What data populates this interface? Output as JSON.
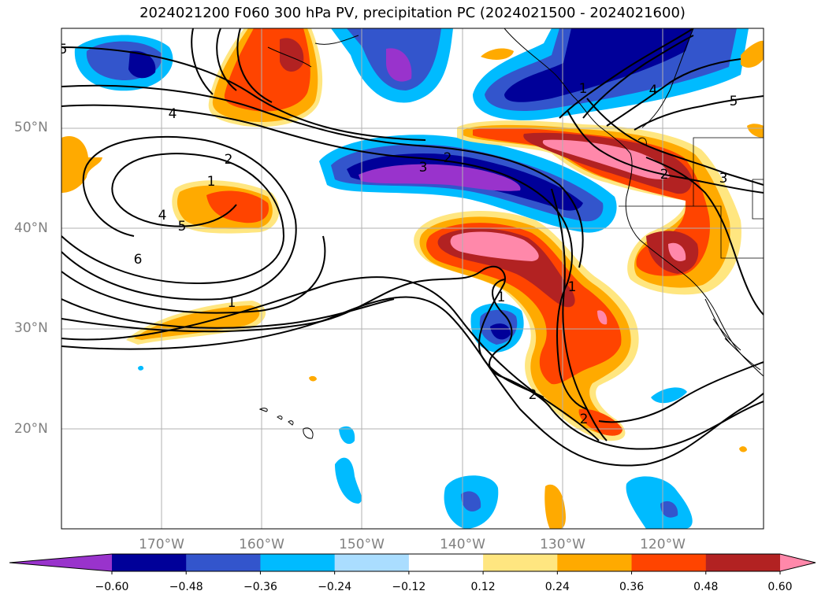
{
  "title": "2024021200 F060 300 hPa PV, precipitation PC (2024021500 - 2024021600)",
  "map": {
    "lat_labels": [
      "50°N",
      "40°N",
      "30°N",
      "20°N"
    ],
    "lon_labels": [
      "170°W",
      "160°W",
      "150°W",
      "140°W",
      "130°W",
      "120°W"
    ],
    "contour_labels": [
      "5",
      "4",
      "2",
      "1",
      "4",
      "5",
      "6",
      "1",
      "3",
      "2",
      "1",
      "2",
      "2",
      "1",
      "4",
      "5",
      "2",
      "3",
      "1"
    ]
  },
  "colorbar": {
    "ticks": [
      "−0.60",
      "−0.48",
      "−0.36",
      "−0.24",
      "−0.12",
      "0.12",
      "0.24",
      "0.36",
      "0.48",
      "0.60"
    ],
    "colors": [
      "#9933cc",
      "#000099",
      "#3355cc",
      "#00bbff",
      "#aaddff",
      "#ffffff",
      "#ffe680",
      "#ffaa00",
      "#ff4400",
      "#b22222",
      "#ff88aa"
    ]
  }
}
